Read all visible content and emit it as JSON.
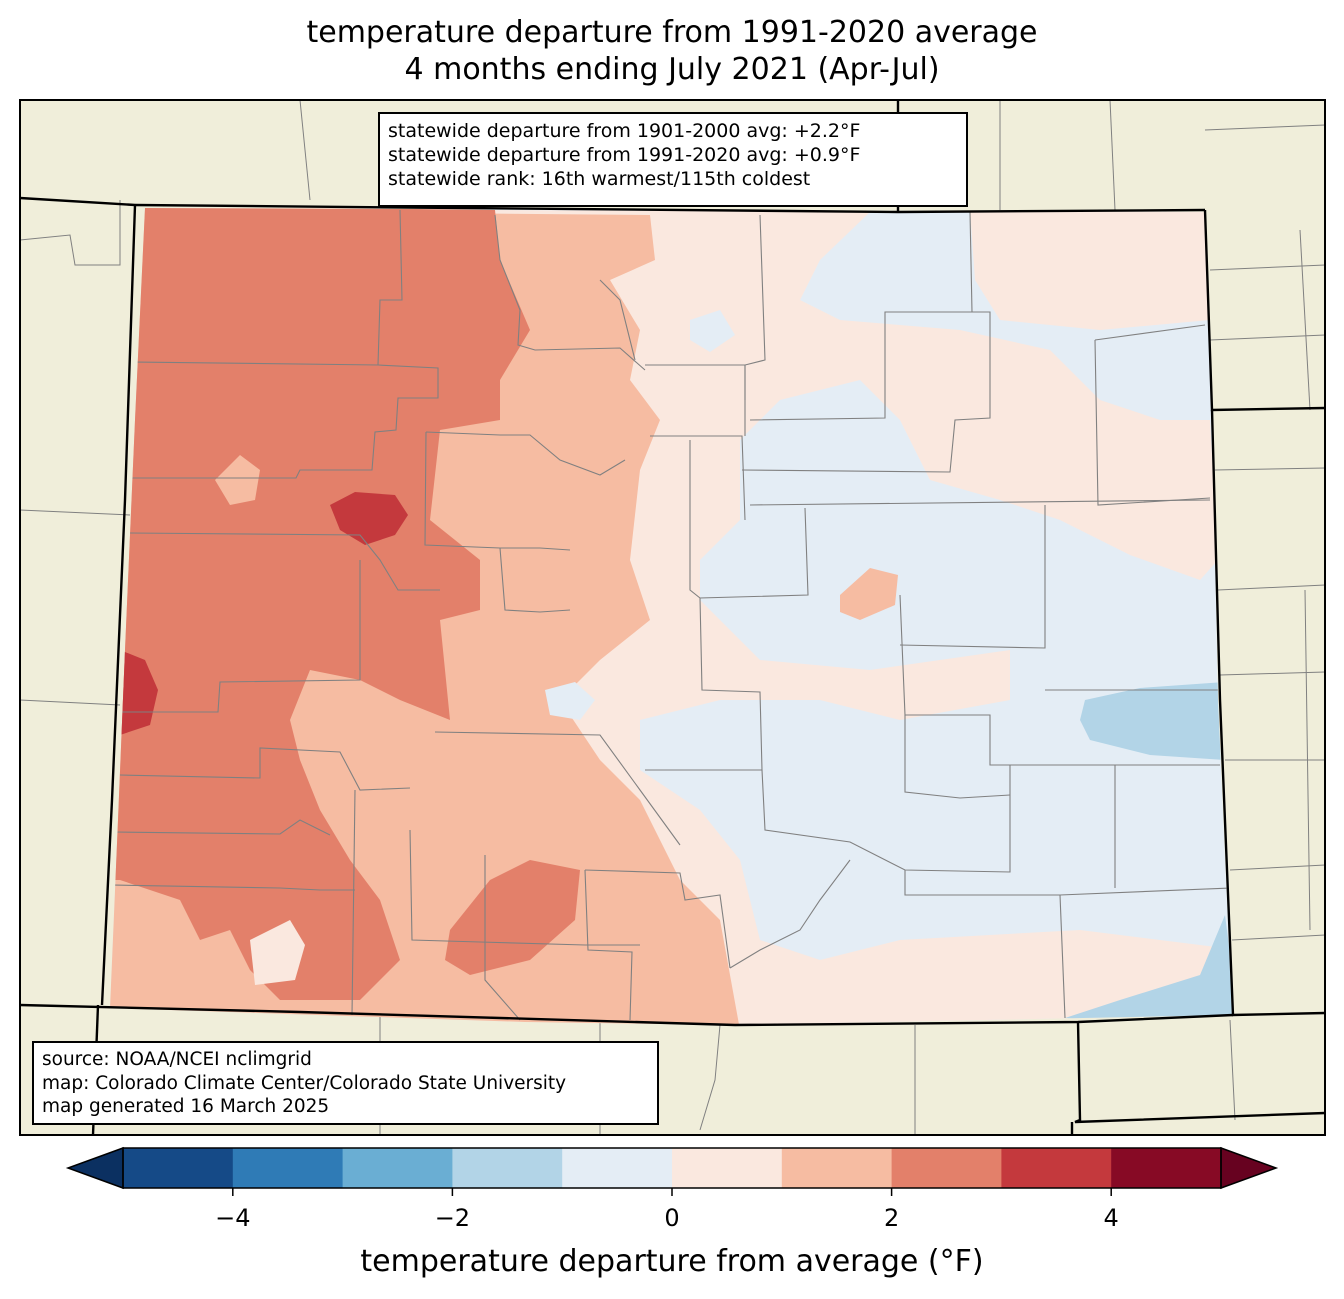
{
  "title": {
    "line1": "temperature departure from 1991-2020 average",
    "line2": "4 months ending July 2021 (Apr-Jul)"
  },
  "stats": {
    "line1": "statewide departure from 1901-2000 avg: +2.2°F",
    "line2": "statewide departure from 1991-2020 avg: +0.9°F",
    "line3": "statewide rank: 16th warmest/115th coldest"
  },
  "credits": {
    "line1": "source: NOAA/NCEI nclimgrid",
    "line2": "map: Colorado Climate Center/Colorado State University",
    "line3": "map generated 16 March 2025"
  },
  "colorbar": {
    "label": "temperature departure from average (°F)",
    "min": -5,
    "max": 5,
    "step": 1,
    "ticks": [
      -4,
      -2,
      0,
      2,
      4
    ],
    "tick_labels": [
      "−4",
      "−2",
      "0",
      "2",
      "4"
    ],
    "colors": [
      "#154a87",
      "#2f7bb6",
      "#6aaed3",
      "#b2d4e7",
      "#e4edf5",
      "#fae8df",
      "#f6bca2",
      "#e3806a",
      "#c4393d",
      "#870a25"
    ],
    "under_color": "#0b3061",
    "over_color": "#670220"
  },
  "map_colors": {
    "background": "#f0eeda",
    "boundary": "#808080",
    "state_line": "#000000"
  },
  "regions": [
    {
      "name": "region-far-northwest",
      "anomaly_band": "2 to 3"
    },
    {
      "name": "region-northwest-hotspot",
      "anomaly_band": "3 to 4"
    },
    {
      "name": "region-mountains",
      "anomaly_band": "1 to 2"
    },
    {
      "name": "region-front-range",
      "anomaly_band": "0 to 1"
    },
    {
      "name": "region-eastern-plains",
      "anomaly_band": "-1 to 0"
    },
    {
      "name": "region-southeast-cool",
      "anomaly_band": "-2 to -1"
    }
  ]
}
